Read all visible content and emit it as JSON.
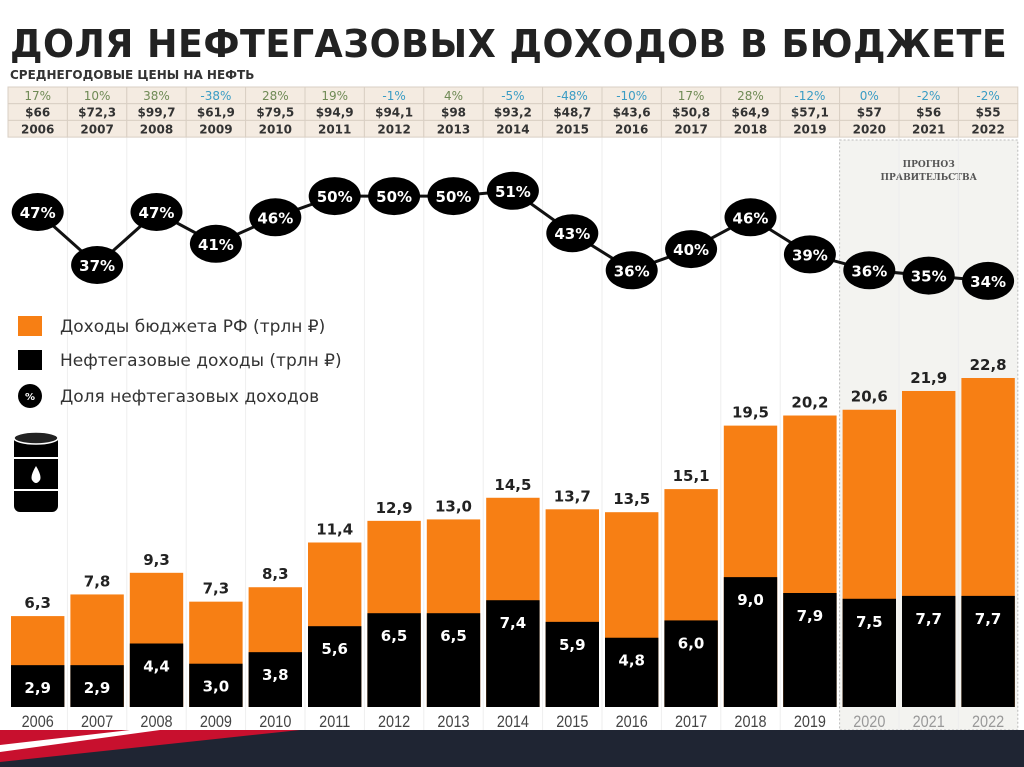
{
  "title": "ДОЛЯ НЕФТЕГАЗОВЫХ ДОХОДОВ В БЮДЖЕТЕ",
  "subtitle": "СРЕДНЕГОДОВЫЕ ЦЕНЫ НА НЕФТЬ",
  "forecast_label": [
    "ПРОГНОЗ",
    "ПРАВИТЕЛЬСТВА"
  ],
  "colors": {
    "orange": "#f77f14",
    "black": "#000000",
    "positive": "#6f8a55",
    "negative": "#3a9cc4",
    "table_bg": "#f4ebe1"
  },
  "chart_data": {
    "type": "bar",
    "title": "ДОЛЯ НЕФТЕГАЗОВЫХ ДОХОДОВ В БЮДЖЕТЕ",
    "categories": [
      "2006",
      "2007",
      "2008",
      "2009",
      "2010",
      "2011",
      "2012",
      "2013",
      "2014",
      "2015",
      "2016",
      "2017",
      "2018",
      "2019",
      "2020",
      "2021",
      "2022"
    ],
    "oil_price_change": [
      "17%",
      "10%",
      "38%",
      "-38%",
      "28%",
      "19%",
      "-1%",
      "4%",
      "-5%",
      "-48%",
      "-10%",
      "17%",
      "28%",
      "-12%",
      "0%",
      "-2%",
      "-2%"
    ],
    "oil_price": [
      "$66",
      "$72,3",
      "$99,7",
      "$61,9",
      "$79,5",
      "$94,9",
      "$94,1",
      "$98",
      "$93,2",
      "$48,7",
      "$43,6",
      "$50,8",
      "$64,9",
      "$57,1",
      "$57",
      "$56",
      "$55"
    ],
    "series": [
      {
        "name": "Доходы бюджета РФ (трлн ₽)",
        "values": [
          6.3,
          7.8,
          9.3,
          7.3,
          8.3,
          11.4,
          12.9,
          13.0,
          14.5,
          13.7,
          13.5,
          15.1,
          19.5,
          20.2,
          20.6,
          21.9,
          22.8
        ]
      },
      {
        "name": "Нефтегазовые доходы (трлн ₽)",
        "values": [
          2.9,
          2.9,
          4.4,
          3.0,
          3.8,
          5.6,
          6.5,
          6.5,
          7.4,
          5.9,
          4.8,
          6.0,
          9.0,
          7.9,
          7.5,
          7.7,
          7.7
        ]
      },
      {
        "name": "Доля нефтегазовых доходов",
        "values": [
          47,
          37,
          47,
          41,
          46,
          50,
          50,
          50,
          51,
          43,
          36,
          40,
          46,
          39,
          36,
          35,
          34
        ]
      }
    ],
    "forecast_years": [
      "2020",
      "2021",
      "2022"
    ],
    "legend_position": "left-middle",
    "ylim": [
      0,
      23
    ]
  }
}
